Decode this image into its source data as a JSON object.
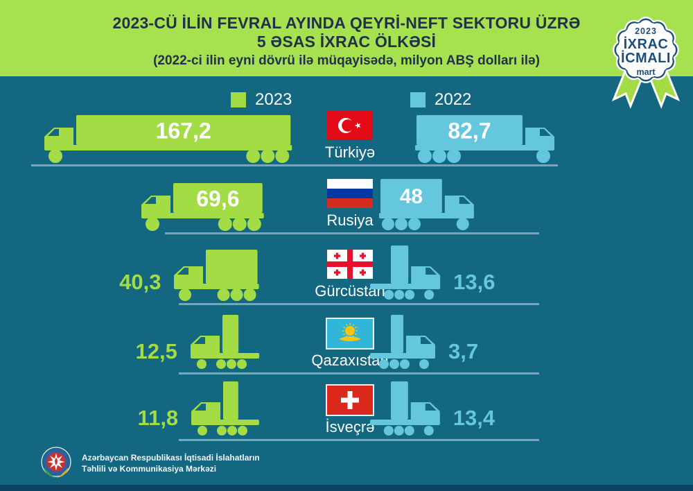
{
  "header": {
    "title_line1": "2023-CÜ İLİN FEVRAL AYINDA QEYRİ-NEFT SEKTORU ÜZRƏ",
    "title_line2": "5 ƏSAS İXRAC ÖLKƏSİ",
    "subtitle": "(2022-ci ilin eyni dövrü ilə müqayisədə, milyon ABŞ dolları ilə)"
  },
  "badge": {
    "year": "2023",
    "line1": "İXRAC",
    "line2": "İCMALI",
    "month": "mart"
  },
  "legend": [
    {
      "label": "2023",
      "color": "#a3dc45"
    },
    {
      "label": "2022",
      "color": "#64c7dd"
    }
  ],
  "chart_data": {
    "type": "bar",
    "title": "2023-cü ilin fevral ayında qeyri-neft sektoru üzrə 5 əsas ixrac ölkəsi",
    "subtitle": "2022-ci ilin eyni dövrü ilə müqayisədə",
    "unit": "milyon ABŞ dolları ilə",
    "categories": [
      "Türkiyə",
      "Rusiya",
      "Gürcüstan",
      "Qazaxıstan",
      "İsveçrə"
    ],
    "series": [
      {
        "name": "2023",
        "color": "#a3dc45",
        "values": [
          167.2,
          69.6,
          40.3,
          12.5,
          11.8
        ],
        "labels": [
          "167,2",
          "69,6",
          "40,3",
          "12,5",
          "11,8"
        ]
      },
      {
        "name": "2022",
        "color": "#64c7dd",
        "values": [
          82.7,
          48,
          13.6,
          3.7,
          13.4
        ],
        "labels": [
          "82,7",
          "48",
          "13,6",
          "3,7",
          "13,4"
        ]
      }
    ],
    "flags": [
      "turkey",
      "russia",
      "georgia",
      "kazakhstan",
      "switzerland"
    ],
    "legend_position": "top",
    "orientation": "horizontal-trucks"
  },
  "footer": {
    "org_line1": "Azərbaycan Respublikası İqtisadi İslahatların",
    "org_line2": "Təhlili və Kommunikasiya Mərkəzi"
  },
  "colors": {
    "background": "#146780",
    "header_green": "#a6e24f",
    "green_2023": "#a3dc45",
    "blue_2022": "#64c7dd",
    "title_navy": "#22304a",
    "badge_navy": "#1d4e78",
    "road": "#7ba3bc",
    "bottom_bar": "#0c4260",
    "value_text": "#ffffff"
  }
}
